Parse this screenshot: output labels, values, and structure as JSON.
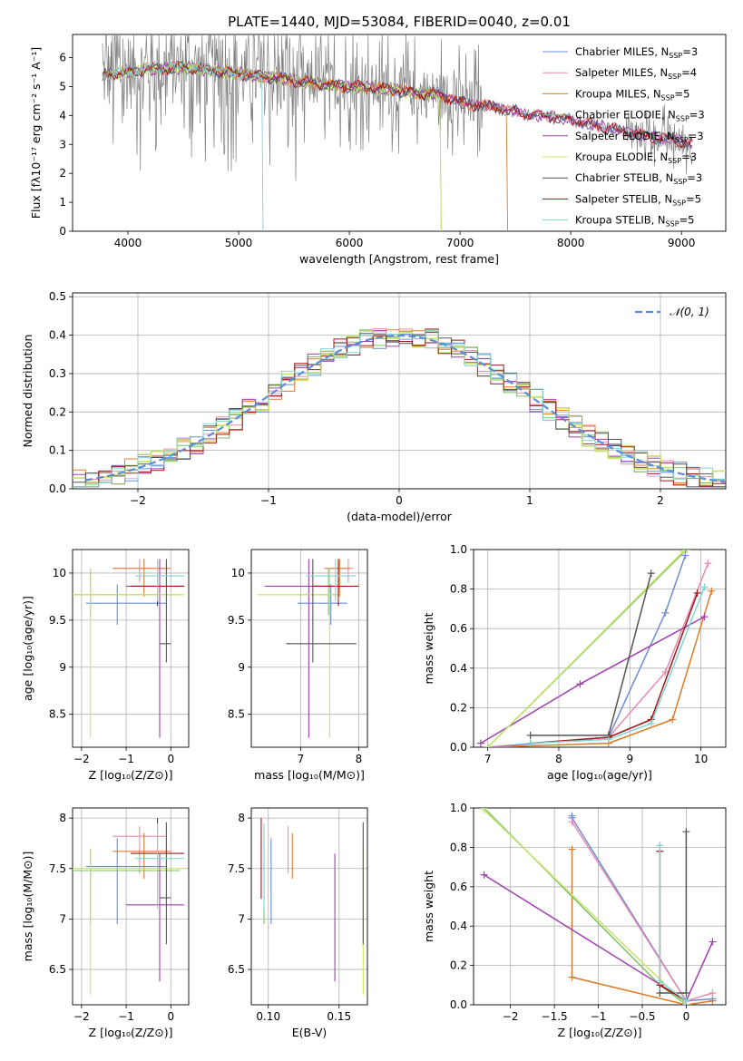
{
  "figure": {
    "title": "PLATE=1440, MJD=53084, FIBERID=0040, z=0.01",
    "colors": {
      "chabrier_miles": "#6b8fd6",
      "salpeter_miles": "#e88cb4",
      "kroupa_miles": "#e07b28",
      "chabrier_elodie": "#7fbf6a",
      "salpeter_elodie": "#a040b0",
      "kroupa_elodie": "#c8e46a",
      "chabrier_stelib": "#555555",
      "salpeter_stelib": "#a01818",
      "kroupa_stelib": "#80d4d4",
      "data": "#808080",
      "normal": "#5b8ed6"
    }
  },
  "chart_data": [
    {
      "id": "spectrum",
      "type": "line",
      "title": "PLATE=1440, MJD=53084, FIBERID=0040, z=0.01",
      "xlabel": "wavelength [Angstrom, rest frame]",
      "ylabel": "Flux [fλ10⁻¹⁷ erg cm⁻² s⁻¹ A⁻¹]",
      "xlim": [
        3500,
        9400
      ],
      "ylim": [
        0,
        6.8
      ],
      "xticks": [
        4000,
        5000,
        6000,
        7000,
        8000,
        9000
      ],
      "yticks": [
        0,
        1,
        2,
        3,
        4,
        5,
        6
      ],
      "legend_position": "top-right",
      "legend": [
        {
          "name": "Chabrier MILES, N",
          "sub": "SSP",
          "eq": "=3",
          "color_key": "chabrier_miles"
        },
        {
          "name": "Salpeter MILES, N",
          "sub": "SSP",
          "eq": "=4",
          "color_key": "salpeter_miles"
        },
        {
          "name": "Kroupa MILES, N",
          "sub": "SSP",
          "eq": "=5",
          "color_key": "kroupa_miles"
        },
        {
          "name": "Chabrier ELODIE, N",
          "sub": "SSP",
          "eq": "=3",
          "color_key": "chabrier_elodie"
        },
        {
          "name": "Salpeter ELODIE, N",
          "sub": "SSP",
          "eq": "=3",
          "color_key": "salpeter_elodie"
        },
        {
          "name": "Kroupa ELODIE, N",
          "sub": "SSP",
          "eq": "=3",
          "color_key": "kroupa_elodie"
        },
        {
          "name": "Chabrier STELIB, N",
          "sub": "SSP",
          "eq": "=3",
          "color_key": "chabrier_stelib"
        },
        {
          "name": "Salpeter STELIB, N",
          "sub": "SSP",
          "eq": "=5",
          "color_key": "salpeter_stelib"
        },
        {
          "name": "Kroupa STELIB, N",
          "sub": "SSP",
          "eq": "=5",
          "color_key": "kroupa_stelib"
        }
      ],
      "continuum": [
        [
          3770,
          5.4
        ],
        [
          4000,
          5.5
        ],
        [
          4200,
          5.6
        ],
        [
          4500,
          5.65
        ],
        [
          4800,
          5.55
        ],
        [
          5000,
          5.45
        ],
        [
          5300,
          5.3
        ],
        [
          5600,
          5.15
        ],
        [
          6000,
          5.0
        ],
        [
          6300,
          4.95
        ],
        [
          6600,
          4.75
        ],
        [
          6800,
          4.75
        ],
        [
          7000,
          4.45
        ],
        [
          7300,
          4.3
        ],
        [
          7600,
          4.05
        ],
        [
          8000,
          3.85
        ],
        [
          8300,
          3.6
        ],
        [
          8600,
          3.35
        ],
        [
          9000,
          3.1
        ],
        [
          9100,
          3.0
        ]
      ],
      "model_cutoffs": [
        {
          "color_key": "kroupa_elodie",
          "x": 6820
        },
        {
          "color_key": "kroupa_miles",
          "x": 7420
        },
        {
          "color_key": "chabrier_elodie",
          "x": 6820
        },
        {
          "color_key": "kroupa_stelib",
          "x": 5210
        }
      ]
    },
    {
      "id": "residuals",
      "type": "bar",
      "xlabel": "(data-model)/error",
      "ylabel": "Normed distribution",
      "xlim": [
        -2.5,
        2.5
      ],
      "ylim": [
        0,
        0.51
      ],
      "xticks": [
        -2,
        -1,
        0,
        1,
        2
      ],
      "yticks": [
        0.0,
        0.1,
        0.2,
        0.3,
        0.4,
        0.5
      ],
      "legend_position": "top-right",
      "legend": [
        {
          "name": "𝒩(0, 1)",
          "color_key": "normal"
        }
      ],
      "bin_width": 0.1,
      "bin_start": -2.5,
      "curve": "standard normal"
    },
    {
      "id": "age_vs_z",
      "type": "scatter",
      "xlabel": "Z [log₁₀(Z/Z⊙)]",
      "ylabel": "age  [log₁₀(age/yr)]",
      "xlim": [
        -2.2,
        0.4
      ],
      "ylim": [
        8.15,
        10.25
      ],
      "xticks": [
        -2,
        -1,
        0
      ],
      "yticks": [
        8.5,
        9.0,
        9.5,
        10.0
      ]
    },
    {
      "id": "age_vs_mass",
      "type": "scatter",
      "xlabel": "mass [log₁₀(M/M⊙)]",
      "ylabel": "",
      "xlim": [
        6.15,
        8.15
      ],
      "ylim": [
        8.15,
        10.25
      ],
      "xticks": [
        7,
        8
      ],
      "yticks": [
        8.5,
        9.0,
        9.5,
        10.0
      ]
    },
    {
      "id": "weight_vs_age",
      "type": "line",
      "xlabel": "age  [log₁₀(age/yr)]",
      "ylabel": "mass weight",
      "xlim": [
        6.8,
        10.35
      ],
      "ylim": [
        0,
        1
      ],
      "xticks": [
        7,
        8,
        9,
        10
      ],
      "yticks": [
        0.0,
        0.2,
        0.4,
        0.6,
        0.8,
        1.0
      ]
    },
    {
      "id": "mass_vs_z",
      "type": "scatter",
      "xlabel": "Z [log₁₀(Z/Z⊙)]",
      "ylabel": "mass [log₁₀(M/M⊙)]",
      "xlim": [
        -2.2,
        0.4
      ],
      "ylim": [
        6.15,
        8.1
      ],
      "xticks": [
        -2,
        -1,
        0
      ],
      "yticks": [
        6.5,
        7.0,
        7.5,
        8.0
      ]
    },
    {
      "id": "mass_vs_ebv",
      "type": "scatter",
      "xlabel": "E(B-V)",
      "ylabel": "",
      "xlim": [
        0.088,
        0.17
      ],
      "ylim": [
        6.15,
        8.1
      ],
      "xticks": [
        0.1,
        0.15
      ],
      "xticklabels": [
        "0.10",
        "0.15"
      ],
      "yticks": [
        6.5,
        7.0,
        7.5,
        8.0
      ]
    },
    {
      "id": "weight_vs_z",
      "type": "line",
      "xlabel": "Z [log₁₀(Z/Z⊙)]",
      "ylabel": "mass weight",
      "xlim": [
        -2.42,
        0.45
      ],
      "ylim": [
        0,
        1
      ],
      "xticks": [
        -2.0,
        -1.5,
        -1.0,
        -0.5,
        0.0
      ],
      "yticks": [
        0.0,
        0.2,
        0.4,
        0.6,
        0.8,
        1.0
      ]
    }
  ],
  "fits": [
    {
      "color_key": "chabrier_miles",
      "age": 9.68,
      "age_lo": 9.45,
      "age_hi": 9.88,
      "Z": -1.2,
      "Z_lo": -1.9,
      "Z_hi": -0.1,
      "mass": 7.52,
      "mass_lo": 6.95,
      "mass_hi": 7.8,
      "ebv": 0.102,
      "age_curve": [
        [
          7.0,
          0.0
        ],
        [
          8.7,
          0.05
        ],
        [
          9.5,
          0.68
        ],
        [
          9.78,
          0.97
        ]
      ],
      "z_curve": [
        [
          -1.3,
          0.96
        ],
        [
          -1.3,
          0.95
        ],
        [
          0.0,
          0.02
        ],
        [
          0.3,
          0.03
        ]
      ]
    },
    {
      "color_key": "salpeter_miles",
      "age": 10.05,
      "age_lo": 9.9,
      "age_hi": 10.15,
      "Z": -0.7,
      "Z_lo": -1.3,
      "Z_hi": -0.1,
      "mass": 7.82,
      "mass_lo": 7.45,
      "mass_hi": 7.92,
      "ebv": 0.114,
      "age_curve": [
        [
          7.6,
          0.02
        ],
        [
          8.7,
          0.05
        ],
        [
          9.5,
          0.38
        ],
        [
          10.1,
          0.93
        ]
      ],
      "z_curve": [
        [
          -1.3,
          0.93
        ],
        [
          0.0,
          0.02
        ],
        [
          0.3,
          0.06
        ]
      ]
    },
    {
      "color_key": "kroupa_miles",
      "age": 10.05,
      "age_lo": 9.75,
      "age_hi": 10.15,
      "Z": -0.6,
      "Z_lo": -1.3,
      "Z_hi": 0.0,
      "mass": 7.67,
      "mass_lo": 7.4,
      "mass_hi": 7.85,
      "ebv": 0.117,
      "age_curve": [
        [
          7.0,
          0.0
        ],
        [
          8.7,
          0.02
        ],
        [
          9.6,
          0.14
        ],
        [
          10.15,
          0.79
        ]
      ],
      "z_curve": [
        [
          -1.3,
          0.79
        ],
        [
          -1.3,
          0.14
        ],
        [
          0.0,
          0.0
        ],
        [
          0.3,
          0.02
        ]
      ]
    },
    {
      "color_key": "chabrier_elodie",
      "age": 9.77,
      "age_lo": 9.55,
      "age_hi": 10.05,
      "Z": -1.8,
      "Z_lo": -2.3,
      "Z_hi": 0.2,
      "mass": 7.48,
      "mass_lo": 6.95,
      "mass_hi": 7.7,
      "ebv": 0.097,
      "age_curve": [
        [
          7.0,
          0.0
        ],
        [
          9.8,
          1.0
        ]
      ],
      "z_curve": [
        [
          -2.3,
          1.0
        ],
        [
          -0.3,
          0.1
        ],
        [
          0.0,
          0.0
        ]
      ]
    },
    {
      "color_key": "salpeter_elodie",
      "age": 9.86,
      "age_lo": 8.25,
      "age_hi": 10.15,
      "Z": -0.25,
      "Z_lo": -1.0,
      "Z_hi": 0.3,
      "mass": 7.14,
      "mass_lo": 6.38,
      "mass_hi": 7.65,
      "ebv": 0.147,
      "age_curve": [
        [
          6.9,
          0.02
        ],
        [
          8.3,
          0.32
        ],
        [
          10.05,
          0.66
        ]
      ],
      "z_curve": [
        [
          -2.3,
          0.66
        ],
        [
          0.0,
          0.02
        ],
        [
          0.3,
          0.32
        ]
      ]
    },
    {
      "color_key": "kroupa_elodie",
      "age": 9.77,
      "age_lo": 8.25,
      "age_hi": 10.05,
      "Z": -1.8,
      "Z_lo": -2.2,
      "Z_hi": 0.3,
      "mass": 7.5,
      "mass_lo": 6.25,
      "mass_hi": 7.7,
      "ebv": 0.167,
      "age_curve": [
        [
          7.0,
          0.0
        ],
        [
          9.75,
          0.99
        ]
      ],
      "z_curve": [
        [
          -2.3,
          0.99
        ],
        [
          0.0,
          0.0
        ]
      ]
    },
    {
      "color_key": "chabrier_stelib",
      "age": 9.25,
      "age_lo": 9.05,
      "age_hi": 10.15,
      "Z": -0.1,
      "Z_lo": -0.25,
      "Z_hi": 0.0,
      "mass": 7.21,
      "mass_lo": 6.75,
      "mass_hi": 7.96,
      "ebv": 0.167,
      "age_curve": [
        [
          7.6,
          0.06
        ],
        [
          8.7,
          0.06
        ],
        [
          9.3,
          0.88
        ]
      ],
      "z_curve": [
        [
          -0.3,
          0.06
        ],
        [
          0.0,
          0.06
        ],
        [
          0.0,
          0.88
        ]
      ]
    },
    {
      "color_key": "salpeter_stelib",
      "age": 9.86,
      "age_lo": 9.65,
      "age_hi": 10.15,
      "Z": -0.3,
      "Z_lo": -0.9,
      "Z_hi": 0.3,
      "mass": 7.65,
      "mass_lo": 7.2,
      "mass_hi": 8.0,
      "ebv": 0.095,
      "age_curve": [
        [
          7.6,
          0.02
        ],
        [
          8.7,
          0.05
        ],
        [
          9.3,
          0.14
        ],
        [
          9.95,
          0.78
        ]
      ],
      "z_curve": [
        [
          -0.3,
          0.78
        ],
        [
          -0.3,
          0.1
        ],
        [
          0.0,
          0.02
        ]
      ]
    },
    {
      "color_key": "kroupa_stelib",
      "age": 9.97,
      "age_lo": 9.7,
      "age_hi": 10.15,
      "Z": -0.3,
      "Z_lo": -0.8,
      "Z_hi": 0.3,
      "mass": 7.6,
      "mass_lo": 7.1,
      "mass_hi": 7.95,
      "ebv": 0.097,
      "age_curve": [
        [
          7.6,
          0.02
        ],
        [
          8.7,
          0.04
        ],
        [
          9.3,
          0.12
        ],
        [
          10.05,
          0.81
        ]
      ],
      "z_curve": [
        [
          -0.3,
          0.81
        ],
        [
          -0.3,
          0.12
        ],
        [
          0.0,
          0.02
        ]
      ]
    }
  ]
}
